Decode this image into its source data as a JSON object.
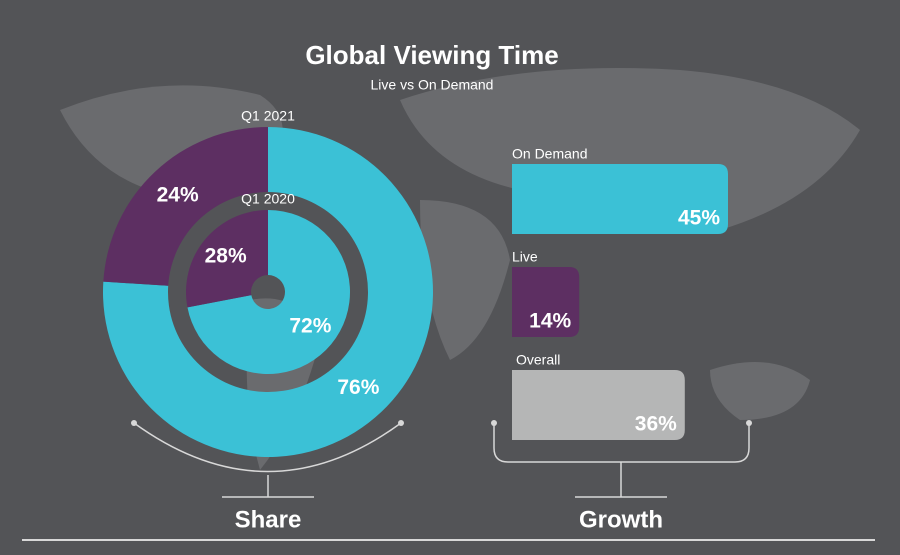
{
  "header": {
    "title": "Global Viewing Time",
    "subtitle": "Live vs On Demand"
  },
  "chart_data": [
    {
      "type": "donut",
      "label": "Share",
      "colors": [
        "#3bc1d6",
        "#5d2f62"
      ],
      "series": [
        {
          "name": "Q1 2021",
          "values": [
            76,
            24
          ],
          "value_labels": [
            "76%",
            "24%"
          ]
        },
        {
          "name": "Q1 2020",
          "values": [
            72,
            28
          ],
          "value_labels": [
            "72%",
            "28%"
          ]
        }
      ]
    },
    {
      "type": "bar",
      "label": "Growth",
      "categories": [
        "On Demand",
        "Live",
        "Overall"
      ],
      "values": [
        45,
        14,
        36
      ],
      "value_labels": [
        "45%",
        "14%",
        "36%"
      ],
      "colors": [
        "#3bc1d6",
        "#5d2f62",
        "#b5b6b6"
      ]
    }
  ]
}
